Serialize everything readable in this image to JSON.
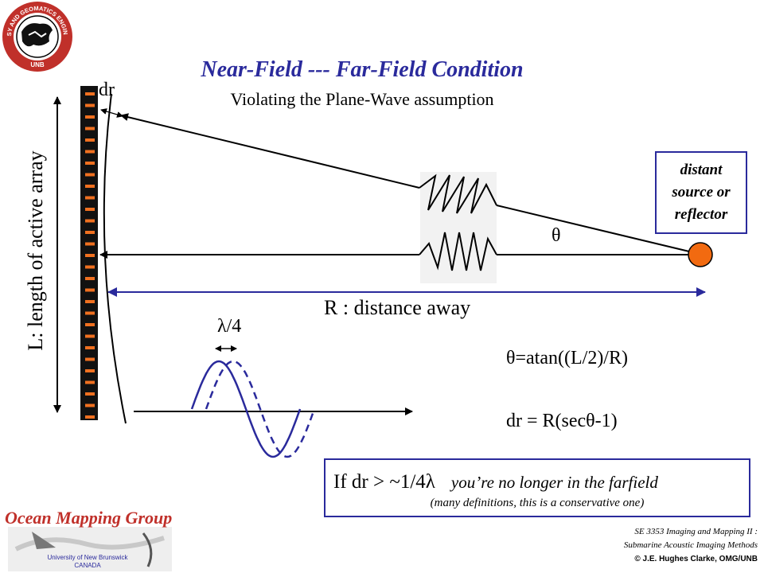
{
  "header": {
    "title": "Near-Field --- Far-Field Condition",
    "subtitle": "Violating the Plane-Wave assumption"
  },
  "diagram": {
    "array_label": "L:  length of active array",
    "dr_label": "dr",
    "source_lines": [
      "distant",
      "source or",
      "reflector"
    ],
    "theta_label": "θ",
    "distance_label": "R : distance away",
    "lambda_label": "λ/4",
    "equation_theta": "θ=atan((L/2)/R)",
    "equation_dr": "dr = R(secθ-1)"
  },
  "condition": {
    "formula": "If dr > ~1/4λ",
    "text": "you’re no longer in the farfield",
    "note": "(many definitions, this is a conservative one)"
  },
  "branding": {
    "seal_top": "GEODESY AND GEOMATICS ENGINEERING",
    "seal_bottom": "UNB",
    "group_name": "Ocean Mapping Group",
    "university_lines": [
      "University of New Brunswick",
      "CANADA"
    ]
  },
  "credits": {
    "course_lines": [
      "SE 3353 Imaging and Mapping II :",
      "Submarine Acoustic Imaging Methods"
    ],
    "copyright": "© J.E. Hughes Clarke, OMG/UNB"
  },
  "colors": {
    "accent_blue": "#2a2a9c",
    "source_orange": "#f26a10",
    "logo_red": "#c0302a",
    "array_black": "#111111",
    "array_element": "#f07020"
  }
}
